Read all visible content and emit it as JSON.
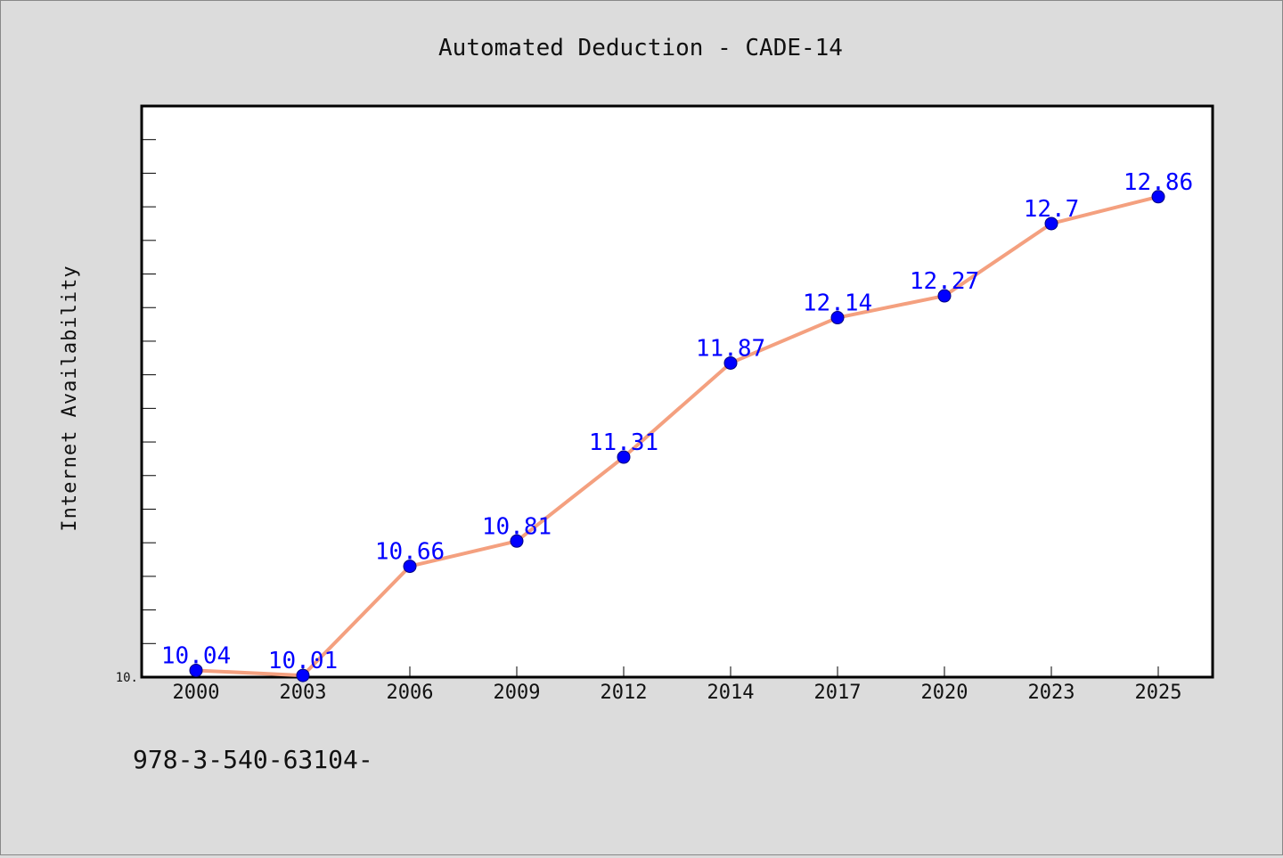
{
  "chart_data": {
    "type": "line",
    "title": "Automated Deduction - CADE-14",
    "xlabel": "",
    "ylabel": "Internet Availability",
    "categories": [
      "2000",
      "2003",
      "2006",
      "2009",
      "2012",
      "2014",
      "2017",
      "2020",
      "2023",
      "2025"
    ],
    "series": [
      {
        "values": [
          10.04,
          10.01,
          10.66,
          10.81,
          11.31,
          11.87,
          12.14,
          12.27,
          12.7,
          12.86
        ],
        "labels": [
          "10.04",
          "10.01",
          "10.66",
          "10.81",
          "11.31",
          "11.87",
          "12.14",
          "12.27",
          "12.7",
          "12.86"
        ],
        "line_color": "#f4a07f",
        "marker_color": "#0000ff"
      }
    ],
    "ylim": [
      10.0,
      13.4
    ],
    "ytick_labels": [
      "10."
    ],
    "ytick_values": [
      10.0
    ],
    "minor_tick_step": 0.2,
    "grid": false,
    "legend": "none"
  },
  "footer": {
    "text": "978-3-540-63104-"
  },
  "colors": {
    "background": "#dcdcdc",
    "plot_background": "#ffffff",
    "axis": "#000000"
  }
}
